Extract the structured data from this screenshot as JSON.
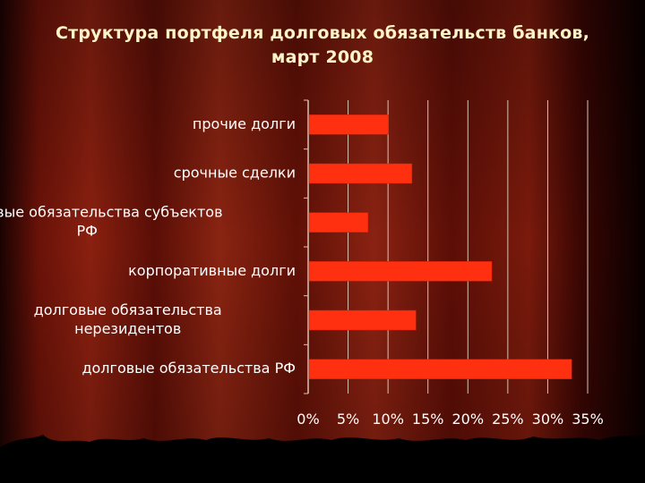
{
  "slide": {
    "title_line1": "Структура портфеля долговых обязательств банков,",
    "title_line2": "март 2008"
  },
  "colors": {
    "bar": "#ff3010",
    "bar_edge": "#c8200a",
    "grid": "#d8c4b4",
    "label": "#ffffff",
    "title": "#fff4c8"
  },
  "chart_data": {
    "type": "bar",
    "orientation": "horizontal",
    "title": "",
    "xlabel": "",
    "ylabel": "",
    "categories": [
      [
        "прочие долги"
      ],
      [
        "срочные сделки"
      ],
      [
        "долговые обязательства субъектов",
        "РФ"
      ],
      [
        "корпоративные долги"
      ],
      [
        "долговые обязательства",
        "нерезидентов"
      ],
      [
        "долговые обязательства РФ"
      ]
    ],
    "values": [
      0.1,
      0.13,
      0.075,
      0.23,
      0.135,
      0.33
    ],
    "xlim": [
      0,
      0.35
    ],
    "xticks": [
      0,
      0.05,
      0.1,
      0.15,
      0.2,
      0.25,
      0.3,
      0.35
    ],
    "xtick_labels": [
      "0%",
      "5%",
      "10%",
      "15%",
      "20%",
      "25%",
      "30%",
      "35%"
    ],
    "grid": true,
    "legend": "none"
  }
}
